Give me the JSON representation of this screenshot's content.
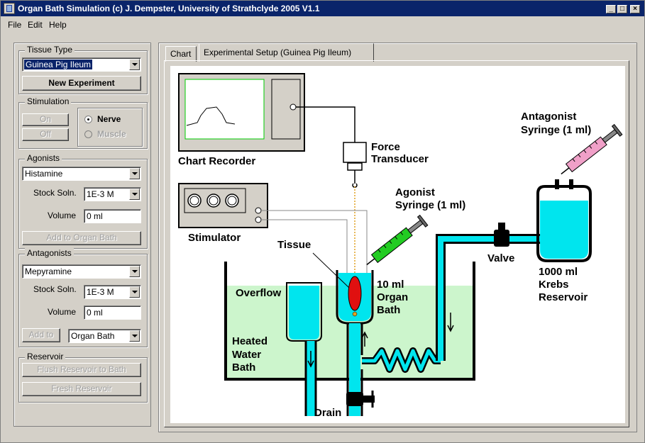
{
  "window": {
    "title": "Organ Bath Simulation (c) J. Dempster, University of Strathclyde 2005 V1.1",
    "min_glyph": "_",
    "max_glyph": "□",
    "close_glyph": "×"
  },
  "menu": [
    "File",
    "Edit",
    "Help"
  ],
  "tissue_type": {
    "label": "Tissue Type",
    "selected": "Guinea Pig Ileum",
    "new_experiment": "New Experiment"
  },
  "stimulation": {
    "label": "Stimulation",
    "on": "On",
    "off": "Off",
    "nerve": "Nerve",
    "muscle": "Muscle"
  },
  "agonists": {
    "label": "Agonists",
    "selected": "Histamine",
    "stock_label": "Stock Soln.",
    "stock_value": "1E-3 M",
    "volume_label": "Volume",
    "volume_value": "0 ml",
    "add_button": "Add to Organ Bath"
  },
  "antagonists": {
    "label": "Antagonists",
    "selected": "Mepyramine",
    "stock_label": "Stock Soln.",
    "stock_value": "1E-3 M",
    "volume_label": "Volume",
    "volume_value": "0 ml",
    "add_button": "Add to",
    "target": "Organ Bath"
  },
  "reservoir": {
    "label": "Reservoir",
    "flush": "Flush Reservoir to Bath",
    "fresh": "Fresh Reservoir"
  },
  "tabs": [
    "Chart",
    "Experimental Setup (Guinea Pig Ileum)"
  ],
  "diagram": {
    "chart_recorder": "Chart Recorder",
    "force_transducer_1": "Force",
    "force_transducer_2": "Transducer",
    "stimulator": "Stimulator",
    "agonist_syringe_1": "Agonist",
    "agonist_syringe_2": "Syringe (1 ml)",
    "antagonist_syringe_1": "Antagonist",
    "antagonist_syringe_2": "Syringe (1 ml)",
    "tissue": "Tissue",
    "organ_bath_1": "10 ml",
    "organ_bath_2": "Organ",
    "organ_bath_3": "Bath",
    "valve": "Valve",
    "reservoir_1": "1000 ml",
    "reservoir_2": "Krebs",
    "reservoir_3": "Reservoir",
    "overflow": "Overflow",
    "water_bath_1": "Heated",
    "water_bath_2": "Water",
    "water_bath_3": "Bath",
    "drain": "Drain"
  },
  "colors": {
    "title_bar": "#0a246a",
    "water_bath": "#ccf5cc",
    "liquid": "#00e5ee",
    "tissue": "#e01010",
    "agonist_syringe": "#22cc22",
    "antagonist_syringe": "#f0a0c8",
    "recorder_screen_border": "#00cc00"
  }
}
